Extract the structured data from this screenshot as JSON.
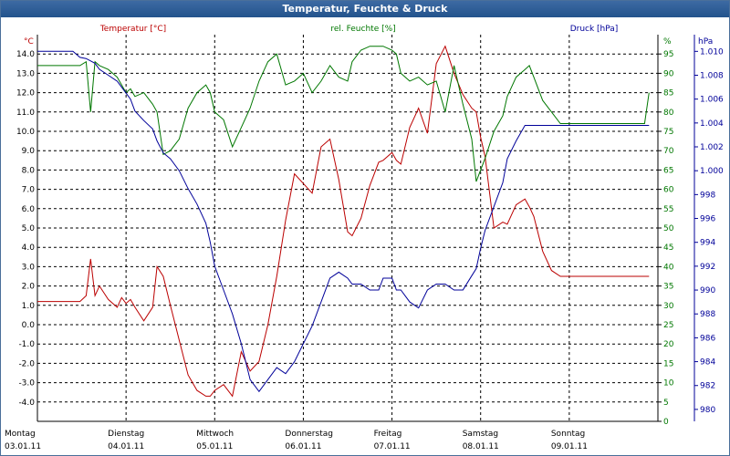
{
  "window": {
    "title": "Temperatur, Feuchte & Druck"
  },
  "chart_data": {
    "type": "line",
    "title": "Temperatur, Feuchte & Druck",
    "x_range": [
      0,
      7
    ],
    "days": [
      {
        "name": "Montag",
        "date": "03.01.11"
      },
      {
        "name": "Dienstag",
        "date": "04.01.11"
      },
      {
        "name": "Mittwoch",
        "date": "05.01.11"
      },
      {
        "name": "Donnerstag",
        "date": "06.01.11"
      },
      {
        "name": "Freitag",
        "date": "07.01.11"
      },
      {
        "name": "Samstag",
        "date": "08.01.11"
      },
      {
        "name": "Sonntag",
        "date": "09.01.11"
      }
    ],
    "axes": {
      "temperature": {
        "label": "Temperatur [°C]",
        "unit": "°C",
        "range": [
          -5,
          15
        ],
        "color": "#bb0000",
        "ticks": [
          "-4.0",
          "-3.0",
          "-2.0",
          "-1.0",
          "0.0",
          "1.0",
          "2.0",
          "3.0",
          "4.0",
          "5.0",
          "6.0",
          "7.0",
          "8.0",
          "9.0",
          "10.0",
          "11.0",
          "12.0",
          "13.0",
          "14.0"
        ]
      },
      "humidity": {
        "label": "rel. Feuchte [%]",
        "unit": "%",
        "range": [
          0,
          100
        ],
        "color": "#007700",
        "ticks": [
          "0",
          "5",
          "10",
          "15",
          "20",
          "25",
          "30",
          "35",
          "40",
          "45",
          "50",
          "55",
          "60",
          "65",
          "70",
          "75",
          "80",
          "85",
          "90",
          "95"
        ]
      },
      "pressure": {
        "label": "Druck [hPa]",
        "unit": "hPa",
        "range": [
          979,
          1011.4
        ],
        "color": "#000099",
        "ticks": [
          "980",
          "982",
          "984",
          "986",
          "988",
          "990",
          "992",
          "994",
          "996",
          "998",
          "1.000",
          "1.002",
          "1.004",
          "1.006",
          "1.008",
          "1.010"
        ]
      }
    },
    "series": [
      {
        "name": "Temperatur",
        "axis": "temperature",
        "color": "#bb0000",
        "x": [
          0,
          0.1,
          0.2,
          0.3,
          0.4,
          0.48,
          0.55,
          0.6,
          0.65,
          0.7,
          0.8,
          0.9,
          0.95,
          1.0,
          1.05,
          1.1,
          1.2,
          1.3,
          1.35,
          1.42,
          1.5,
          1.6,
          1.7,
          1.8,
          1.9,
          1.95,
          2.0,
          2.1,
          2.2,
          2.3,
          2.4,
          2.5,
          2.6,
          2.7,
          2.8,
          2.9,
          3.0,
          3.1,
          3.2,
          3.3,
          3.4,
          3.5,
          3.55,
          3.65,
          3.75,
          3.85,
          3.9,
          4.0,
          4.05,
          4.1,
          4.2,
          4.3,
          4.4,
          4.5,
          4.6,
          4.7,
          4.8,
          4.9,
          4.95,
          5.0,
          5.05,
          5.15,
          5.25,
          5.3,
          5.4,
          5.5,
          5.55,
          5.6,
          5.7,
          5.8,
          5.9,
          6.0,
          6.05,
          6.15,
          6.25,
          6.35,
          6.45,
          6.55,
          6.65,
          6.75,
          6.85,
          6.9
        ],
        "values": [
          1.2,
          1.2,
          1.2,
          1.2,
          1.2,
          1.2,
          1.5,
          3.4,
          1.5,
          2.0,
          1.3,
          0.9,
          1.4,
          1.1,
          1.3,
          0.9,
          0.2,
          0.9,
          3.0,
          2.5,
          1.0,
          -0.8,
          -2.6,
          -3.4,
          -3.7,
          -3.7,
          -3.4,
          -3.1,
          -3.7,
          -1.4,
          -2.4,
          -1.9,
          0.0,
          2.5,
          5.4,
          7.8,
          7.3,
          6.8,
          9.2,
          9.6,
          7.5,
          4.8,
          4.6,
          5.5,
          7.2,
          8.4,
          8.5,
          8.9,
          8.5,
          8.3,
          10.2,
          11.2,
          9.9,
          13.5,
          14.4,
          13.0,
          11.9,
          11.2,
          11.0,
          9.7,
          8.7,
          5.0,
          5.3,
          5.2,
          6.2,
          6.5,
          6.1,
          5.6,
          3.8,
          2.8,
          2.5,
          2.5,
          2.5,
          2.5,
          2.5,
          2.5,
          2.5,
          2.5,
          2.5,
          2.5,
          2.5,
          2.5
        ]
      },
      {
        "name": "rel. Feuchte",
        "axis": "humidity",
        "color": "#007700",
        "x": [
          0,
          0.1,
          0.2,
          0.3,
          0.4,
          0.48,
          0.55,
          0.6,
          0.65,
          0.7,
          0.8,
          0.9,
          0.95,
          1.0,
          1.05,
          1.1,
          1.2,
          1.3,
          1.35,
          1.42,
          1.5,
          1.6,
          1.7,
          1.8,
          1.9,
          1.95,
          2.0,
          2.1,
          2.2,
          2.3,
          2.4,
          2.5,
          2.6,
          2.7,
          2.8,
          2.9,
          3.0,
          3.1,
          3.2,
          3.3,
          3.4,
          3.5,
          3.55,
          3.65,
          3.75,
          3.85,
          3.9,
          4.0,
          4.05,
          4.1,
          4.2,
          4.3,
          4.4,
          4.5,
          4.6,
          4.7,
          4.8,
          4.9,
          4.95,
          5.0,
          5.05,
          5.15,
          5.25,
          5.3,
          5.4,
          5.5,
          5.55,
          5.6,
          5.7,
          5.8,
          5.9,
          6.0,
          6.05,
          6.15,
          6.25,
          6.35,
          6.45,
          6.55,
          6.65,
          6.75,
          6.85,
          6.9
        ],
        "values": [
          92,
          92,
          92,
          92,
          92,
          92,
          93,
          80,
          93,
          92,
          91,
          89,
          87,
          85,
          86,
          84,
          85,
          82,
          80,
          69,
          70,
          73,
          81,
          85,
          87,
          85,
          80,
          78,
          71,
          76,
          81,
          88,
          93,
          95,
          87,
          88,
          90,
          85,
          88,
          92,
          89,
          88,
          93,
          96,
          97,
          97,
          97,
          96,
          95,
          90,
          88,
          89,
          87,
          88,
          80,
          92,
          82,
          73,
          62,
          65,
          68,
          75,
          79,
          84,
          89,
          91,
          92,
          89,
          83,
          80,
          77,
          77,
          77,
          77,
          77,
          77,
          77,
          77,
          77,
          77,
          77,
          85
        ]
      },
      {
        "name": "Druck",
        "axis": "pressure",
        "color": "#000099",
        "x": [
          0,
          0.1,
          0.2,
          0.3,
          0.4,
          0.48,
          0.55,
          0.6,
          0.65,
          0.7,
          0.8,
          0.9,
          0.95,
          1.0,
          1.05,
          1.1,
          1.2,
          1.3,
          1.35,
          1.42,
          1.5,
          1.6,
          1.7,
          1.8,
          1.9,
          1.95,
          2.0,
          2.1,
          2.2,
          2.3,
          2.4,
          2.5,
          2.6,
          2.7,
          2.8,
          2.9,
          3.0,
          3.1,
          3.2,
          3.3,
          3.4,
          3.5,
          3.55,
          3.65,
          3.75,
          3.85,
          3.9,
          4.0,
          4.05,
          4.1,
          4.2,
          4.3,
          4.4,
          4.5,
          4.6,
          4.7,
          4.8,
          4.9,
          4.95,
          5.0,
          5.05,
          5.15,
          5.25,
          5.3,
          5.4,
          5.5,
          5.55,
          5.6,
          5.7,
          5.8,
          5.9,
          6.0,
          6.05,
          6.15,
          6.25,
          6.35,
          6.45,
          6.55,
          6.65,
          6.75,
          6.85,
          6.9
        ],
        "values": [
          1010,
          1010,
          1010,
          1010,
          1010,
          1009.5,
          1009.4,
          1009.2,
          1009,
          1008.5,
          1008,
          1007.5,
          1007,
          1006.5,
          1006,
          1005,
          1004.2,
          1003.5,
          1002.5,
          1001.5,
          1001,
          1000,
          998.5,
          997.2,
          995.6,
          994,
          992,
          990,
          988,
          985.5,
          982.5,
          981.5,
          982.5,
          983.5,
          983,
          984,
          985.5,
          987,
          989,
          991,
          991.5,
          991,
          990.5,
          990.5,
          990,
          990,
          991,
          991,
          990,
          990,
          989,
          988.5,
          990,
          990.5,
          990.5,
          990,
          990,
          991.2,
          991.8,
          993.5,
          995,
          997,
          999,
          1001,
          1002.5,
          1003.8,
          1003.8,
          1003.8,
          1003.8,
          1003.8,
          1003.8,
          1003.8,
          1003.8,
          1003.8,
          1003.8,
          1003.8,
          1003.8,
          1003.8,
          1003.8,
          1003.8,
          1003.8,
          1003.8
        ]
      }
    ],
    "grid": true
  }
}
